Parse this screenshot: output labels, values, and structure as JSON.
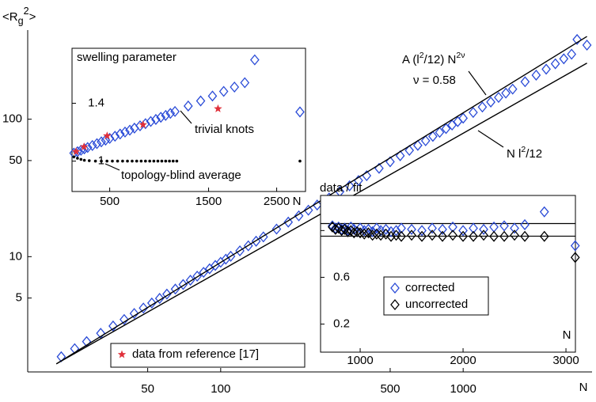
{
  "chart_data": [
    {
      "type": "scatter",
      "xscale": "log",
      "yscale": "log",
      "xlabel": "N",
      "ylabel": [
        {
          "text": "<R"
        },
        {
          "text": "g",
          "sub": true
        },
        {
          "text": "2",
          "sup": true
        },
        {
          "text": ">"
        }
      ],
      "xlim": [
        16,
        3400
      ],
      "ylim": [
        1.45,
        445
      ],
      "xticks": [
        50,
        100,
        500,
        1000
      ],
      "yticks": [
        5,
        10,
        50,
        100
      ],
      "series": [
        {
          "color": "#2a4bd7",
          "marker": "diamond",
          "x": [
            22,
            25,
            28,
            32,
            36,
            40,
            44,
            48,
            52,
            56,
            60,
            65,
            70,
            75,
            80,
            85,
            90,
            95,
            100,
            105,
            110,
            120,
            130,
            140,
            150,
            170,
            190,
            210,
            230,
            250,
            280,
            310,
            340,
            370,
            400,
            450,
            500,
            550,
            600,
            650,
            700,
            750,
            800,
            850,
            900,
            950,
            1000,
            1100,
            1200,
            1300,
            1400,
            1500,
            1600,
            1800,
            2000,
            2200,
            2400,
            2600,
            2800,
            2950,
            3240
          ],
          "values": [
            1.87,
            2.14,
            2.41,
            2.77,
            3.13,
            3.49,
            3.86,
            4.23,
            4.6,
            4.97,
            5.34,
            5.81,
            6.27,
            6.74,
            7.21,
            7.69,
            8.16,
            8.63,
            9.11,
            9.59,
            10.06,
            11.02,
            11.99,
            12.95,
            13.92,
            15.87,
            17.83,
            19.8,
            21.77,
            23.75,
            26.75,
            29.75,
            32.76,
            35.8,
            38.83,
            43.9,
            49,
            54.2,
            59.3,
            64.5,
            69.7,
            75,
            80.2,
            85.4,
            90.7,
            96,
            101.7,
            111.9,
            122.6,
            133.3,
            144,
            154.8,
            165.5,
            187.3,
            209.1,
            231.1,
            253,
            275,
            297,
            380,
            346
          ]
        },
        {
          "color": "#000000",
          "marker": "line",
          "x": [
            21,
            3240
          ],
          "values": [
            1.66,
            400
          ]
        },
        {
          "color": "#000000",
          "marker": "line",
          "x": [
            21,
            3240
          ],
          "values": [
            1.66,
            256
          ]
        }
      ],
      "annotations": [
        [
          {
            "text": "A (l"
          },
          {
            "text": "2",
            "sup": true
          },
          {
            "text": "/12) N"
          },
          {
            "text": "2ν",
            "sup": true
          }
        ],
        "ν = 0.58",
        [
          {
            "text": "N l"
          },
          {
            "text": "2",
            "sup": true
          },
          {
            "text": "/12"
          }
        ]
      ]
    },
    {
      "type": "scatter",
      "xscale": "sqrt",
      "yscale": "linear",
      "title": "swelling parameter",
      "xlabel": "N",
      "xlim": [
        260,
        3000
      ],
      "ylim": [
        0.79,
        1.78
      ],
      "xticks": [
        500,
        1500,
        2500
      ],
      "yticks": [
        1,
        1.4
      ],
      "series": [
        {
          "color": "#2a4bd7",
          "marker": "diamond",
          "x": [
            270,
            290,
            310,
            330,
            350,
            380,
            410,
            440,
            470,
            500,
            540,
            580,
            620,
            660,
            700,
            750,
            800,
            850,
            900,
            950,
            1000,
            1050,
            1100,
            1250,
            1400,
            1550,
            1700,
            1850,
            2000,
            2150,
            2900
          ],
          "values": [
            1.055,
            1.065,
            1.075,
            1.085,
            1.094,
            1.108,
            1.121,
            1.133,
            1.145,
            1.157,
            1.172,
            1.187,
            1.201,
            1.214,
            1.228,
            1.244,
            1.259,
            1.274,
            1.288,
            1.303,
            1.316,
            1.33,
            1.343,
            1.381,
            1.416,
            1.45,
            1.482,
            1.512,
            1.542,
            1.7,
            1.34
          ]
        },
        {
          "color": "#000000",
          "marker": "dot",
          "x": [
            270,
            290,
            310,
            330,
            360,
            400,
            440,
            480,
            520,
            560,
            600,
            640,
            680,
            720,
            760,
            800,
            840,
            880,
            920,
            960,
            1000,
            1040,
            1080,
            1120,
            2900
          ],
          "values": [
            1.03,
            1.02,
            1.012,
            1.006,
            1.003,
            1,
            1,
            1,
            1,
            1,
            1,
            1,
            1,
            1,
            1,
            1,
            1,
            1,
            1,
            1,
            1,
            1,
            1,
            1,
            1
          ]
        },
        {
          "name": "data from reference [17]",
          "color": "#e0303a",
          "marker": "star",
          "x": [
            282,
            328,
            481,
            777,
            1623
          ],
          "values": [
            1.066,
            1.099,
            1.175,
            1.252,
            1.362
          ]
        }
      ],
      "annotations": [
        "trivial knots",
        "topology-blind average"
      ]
    },
    {
      "type": "scatter",
      "xscale": "linear",
      "yscale": "linear",
      "title": "data / fit",
      "xlabel": "N",
      "xlim": [
        615,
        3092
      ],
      "ylim": [
        -0.04,
        1.3
      ],
      "xticks": [
        1000,
        2000,
        3000
      ],
      "yticks": [
        0.2,
        0.6,
        1
      ],
      "hlines": [
        1.06,
        0.952
      ],
      "series": [
        {
          "name": "corrected",
          "color": "#2a4bd7",
          "marker": "diamond",
          "x": [
            730,
            760,
            790,
            820,
            850,
            880,
            910,
            940,
            970,
            1000,
            1040,
            1080,
            1120,
            1160,
            1200,
            1250,
            1300,
            1350,
            1400,
            1500,
            1600,
            1700,
            1800,
            1900,
            2000,
            2100,
            2200,
            2300,
            2400,
            2500,
            2600,
            2790,
            3090
          ],
          "values": [
            1.04,
            1.02,
            1.03,
            1.01,
            1.02,
            1.0,
            1.03,
            1.01,
            0.99,
            1.02,
            1.0,
            1.01,
            0.99,
            1.02,
            1.0,
            1.01,
            0.99,
            1.0,
            1.02,
            1.01,
            1.0,
            1.02,
            1.01,
            1.03,
            1.0,
            1.02,
            1.01,
            1.03,
            1.04,
            1.02,
            1.05,
            1.16,
            0.87
          ]
        },
        {
          "name": "uncorrected",
          "color": "#000000",
          "marker": "diamond",
          "x": [
            730,
            760,
            790,
            820,
            850,
            880,
            910,
            940,
            970,
            1000,
            1040,
            1080,
            1120,
            1160,
            1200,
            1250,
            1300,
            1350,
            1400,
            1500,
            1600,
            1700,
            1800,
            1900,
            2000,
            2100,
            2200,
            2300,
            2400,
            2500,
            2600,
            2790,
            3090
          ],
          "values": [
            1.03,
            1.01,
            1.02,
            1.0,
            1.01,
            0.99,
            1.0,
            0.98,
            0.99,
            0.98,
            0.97,
            0.98,
            0.96,
            0.97,
            0.96,
            0.97,
            0.95,
            0.96,
            0.95,
            0.96,
            0.95,
            0.96,
            0.95,
            0.96,
            0.95,
            0.95,
            0.96,
            0.95,
            0.95,
            0.96,
            0.95,
            0.95,
            0.77
          ]
        }
      ]
    }
  ]
}
